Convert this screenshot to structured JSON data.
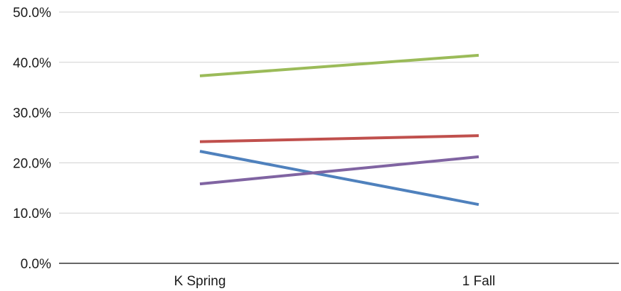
{
  "chart_data": {
    "type": "line",
    "title": "",
    "xlabel": "",
    "ylabel": "",
    "categories": [
      "K Spring",
      "1 Fall"
    ],
    "ylim": [
      0,
      50
    ],
    "yticks": [
      0,
      10,
      20,
      30,
      40,
      50
    ],
    "ytick_labels": [
      "0.0%",
      "10.0%",
      "20.0%",
      "30.0%",
      "40.0%",
      "50.0%"
    ],
    "grid": true,
    "legend": "none",
    "series": [
      {
        "values": [
          37.3,
          41.4
        ],
        "color": "#9BBB59"
      },
      {
        "values": [
          24.2,
          25.4
        ],
        "color": "#C0504D"
      },
      {
        "values": [
          22.3,
          11.7
        ],
        "color": "#4F81BD"
      },
      {
        "values": [
          15.8,
          21.2
        ],
        "color": "#8064A2"
      }
    ]
  }
}
